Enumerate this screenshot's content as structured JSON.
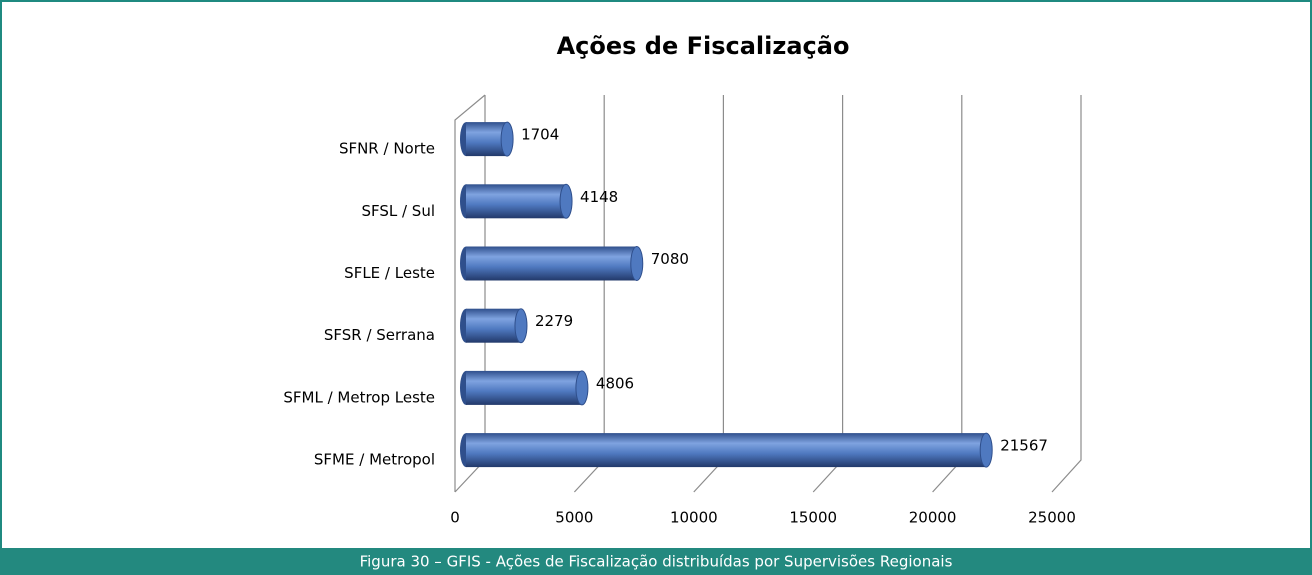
{
  "chart_data": {
    "type": "bar",
    "title": "Ações de Fiscalização",
    "categories": [
      "SFNR / Norte",
      "SFSL / Sul",
      "SFLE / Leste",
      "SFSR / Serrana",
      "SFML / Metrop Leste",
      "SFME / Metropol"
    ],
    "values": [
      1704,
      4148,
      7080,
      2279,
      4806,
      21567
    ],
    "color": "#4f79c0",
    "xlim": [
      0,
      25000
    ],
    "xticks": [
      0,
      5000,
      10000,
      15000,
      20000,
      25000
    ],
    "grid": true
  },
  "caption": "Figura 30 – GFIS - Ações de Fiscalização distribuídas por Supervisões Regionais"
}
